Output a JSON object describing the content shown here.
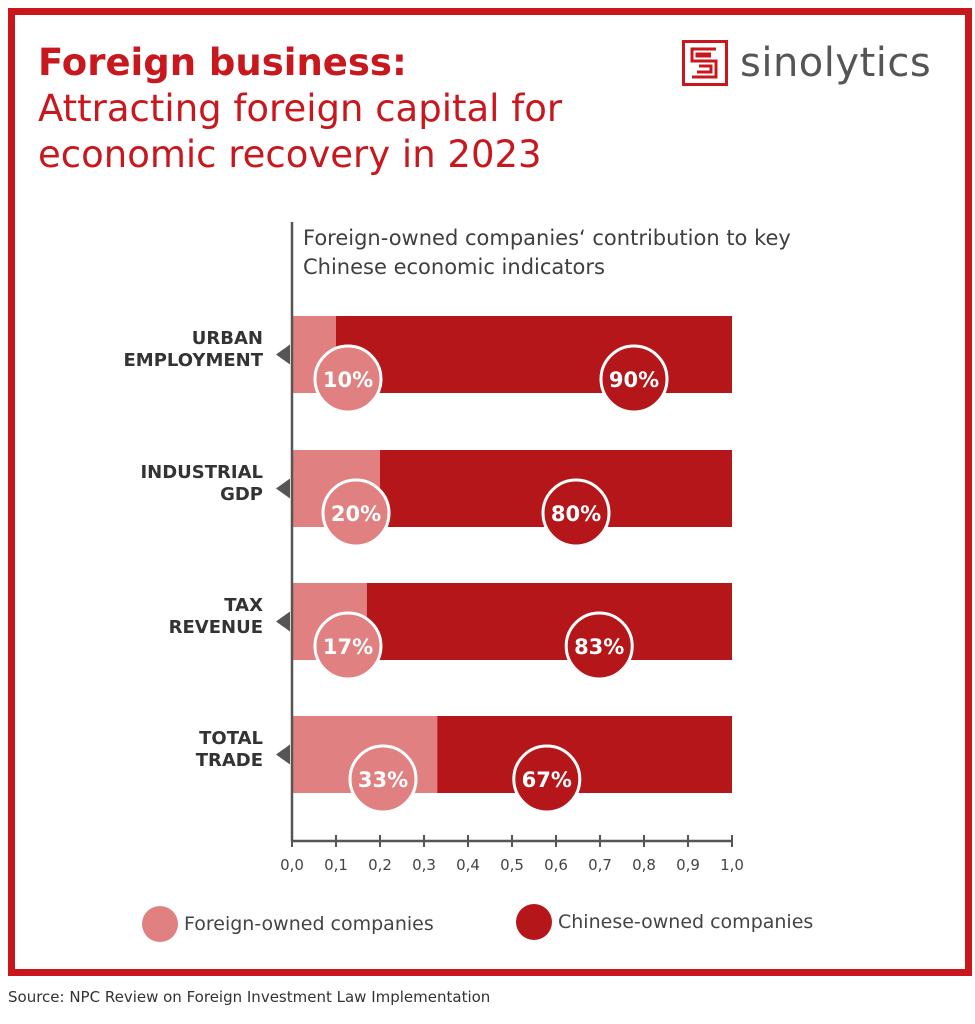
{
  "header": {
    "title_bold": "Foreign business:",
    "title_rest": " Attracting foreign capital for economic recovery in 2023"
  },
  "logo": {
    "text": "sinolytics",
    "icon": "sinolytics-logo-icon"
  },
  "colors": {
    "frame": "#c8181e",
    "foreign": "#e08080",
    "chinese": "#b5161a",
    "axis": "#555555"
  },
  "chart_data": {
    "type": "bar",
    "orientation": "horizontal",
    "stacked": true,
    "title": "Foreign-owned companies‘ contribution to key Chinese economic indicators",
    "categories": [
      "URBAN EMPLOYMENT",
      "INDUSTRIAL GDP",
      "TAX REVENUE",
      "TOTAL TRADE"
    ],
    "category_lines": [
      [
        "URBAN",
        "EMPLOYMENT"
      ],
      [
        "INDUSTRIAL",
        "GDP"
      ],
      [
        "TAX",
        "REVENUE"
      ],
      [
        "TOTAL",
        "TRADE"
      ]
    ],
    "series": [
      {
        "name": "Foreign-owned companies",
        "values": [
          0.1,
          0.2,
          0.17,
          0.33
        ],
        "labels": [
          "10%",
          "20%",
          "17%",
          "33%"
        ],
        "color": "#e08080"
      },
      {
        "name": "Chinese-owned companies",
        "values": [
          0.9,
          0.8,
          0.83,
          0.67
        ],
        "labels": [
          "90%",
          "80%",
          "83%",
          "67%"
        ],
        "color": "#b5161a"
      }
    ],
    "xlim": [
      0,
      1
    ],
    "x_ticks": [
      "0,0",
      "0,1",
      "0,2",
      "0,3",
      "0,4",
      "0,5",
      "0,6",
      "0,7",
      "0,8",
      "0,9",
      "1,0"
    ],
    "legend_position": "bottom",
    "grid": false
  },
  "source": "Source: NPC Review on Foreign Investment Law Implementation"
}
